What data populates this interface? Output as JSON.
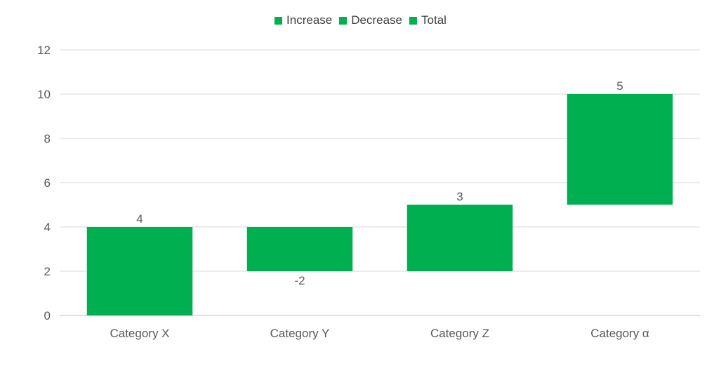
{
  "chart_data": {
    "type": "bar",
    "subtype": "waterfall",
    "title": "",
    "xlabel": "",
    "ylabel": "",
    "ylim": [
      0,
      12
    ],
    "y_ticks": [
      0,
      2,
      4,
      6,
      8,
      10,
      12
    ],
    "grid": true,
    "legend_position": "top",
    "legend": [
      {
        "name": "Increase",
        "color": "#00B050"
      },
      {
        "name": "Decrease",
        "color": "#00B050"
      },
      {
        "name": "Total",
        "color": "#00B050"
      }
    ],
    "categories": [
      "Category X",
      "Category Y",
      "Category Z",
      "Category α"
    ],
    "values": [
      4,
      -2,
      3,
      5
    ],
    "data_labels": [
      "4",
      "-2",
      "3",
      "5"
    ],
    "bar_color": "#00B050"
  }
}
